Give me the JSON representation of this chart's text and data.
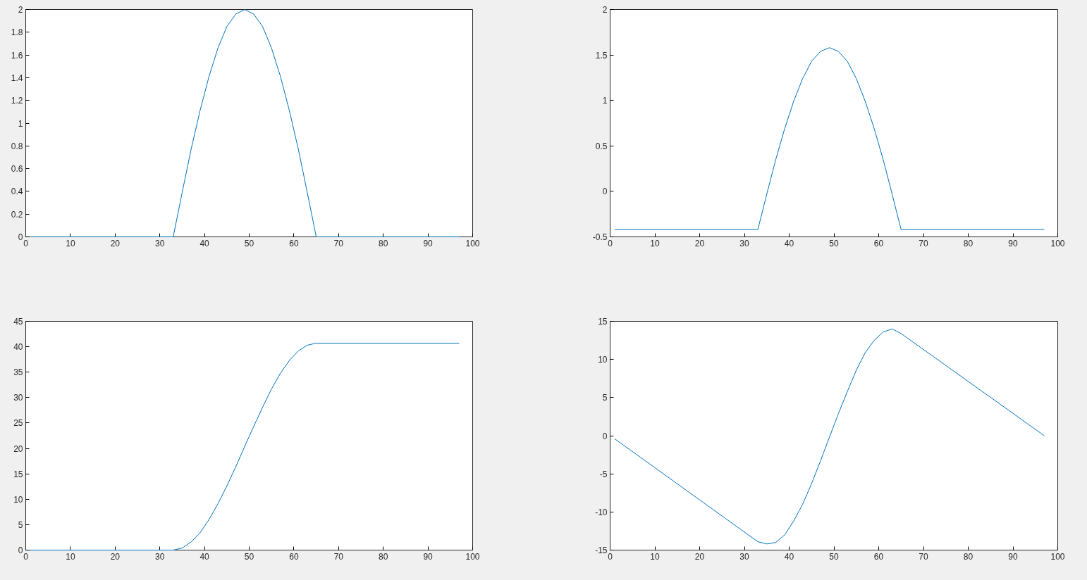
{
  "chart_data": [
    {
      "type": "line",
      "x": [
        1,
        33,
        35,
        37,
        39,
        41,
        43,
        45,
        47,
        49,
        51,
        53,
        55,
        57,
        59,
        61,
        63,
        65,
        97
      ],
      "series": [
        {
          "color": "#0072bd",
          "values": [
            0,
            0,
            0.39,
            0.77,
            1.11,
            1.41,
            1.66,
            1.85,
            1.96,
            2,
            1.96,
            1.85,
            1.66,
            1.41,
            1.11,
            0.77,
            0.39,
            0,
            0
          ]
        }
      ],
      "xlim": [
        0,
        100
      ],
      "ylim": [
        0,
        2
      ],
      "xticks": [
        0,
        10,
        20,
        30,
        40,
        50,
        60,
        70,
        80,
        90,
        100
      ],
      "yticks": [
        0,
        0.2,
        0.4,
        0.6,
        0.8,
        1,
        1.2,
        1.4,
        1.6,
        1.8,
        2
      ],
      "grid": false
    },
    {
      "type": "line",
      "x": [
        1,
        33,
        35,
        37,
        39,
        41,
        43,
        45,
        47,
        49,
        51,
        53,
        55,
        57,
        59,
        61,
        63,
        65,
        97
      ],
      "series": [
        {
          "color": "#0072bd",
          "values": [
            -0.42,
            -0.42,
            -0.03,
            0.35,
            0.69,
            0.99,
            1.24,
            1.43,
            1.54,
            1.58,
            1.54,
            1.43,
            1.24,
            0.99,
            0.69,
            0.35,
            -0.03,
            -0.42,
            -0.42
          ]
        }
      ],
      "xlim": [
        0,
        100
      ],
      "ylim": [
        -0.5,
        2
      ],
      "xticks": [
        0,
        10,
        20,
        30,
        40,
        50,
        60,
        70,
        80,
        90,
        100
      ],
      "yticks": [
        -0.5,
        0,
        0.5,
        1,
        1.5,
        2
      ],
      "grid": false
    },
    {
      "type": "line",
      "x": [
        1,
        33,
        35,
        37,
        39,
        41,
        43,
        45,
        47,
        49,
        51,
        53,
        55,
        57,
        59,
        61,
        63,
        65,
        97
      ],
      "series": [
        {
          "color": "#0072bd",
          "values": [
            0,
            0,
            0.4,
            1.6,
            3.4,
            6.0,
            9.1,
            12.6,
            16.4,
            20.4,
            24.3,
            28.1,
            31.7,
            34.8,
            37.3,
            39.2,
            40.3,
            40.7,
            40.7
          ]
        }
      ],
      "xlim": [
        0,
        100
      ],
      "ylim": [
        0,
        45
      ],
      "xticks": [
        0,
        10,
        20,
        30,
        40,
        50,
        60,
        70,
        80,
        90,
        100
      ],
      "yticks": [
        0,
        5,
        10,
        15,
        20,
        25,
        30,
        35,
        40,
        45
      ],
      "grid": false
    },
    {
      "type": "line",
      "x": [
        1,
        33,
        35,
        37,
        39,
        41,
        43,
        45,
        47,
        49,
        51,
        53,
        55,
        57,
        59,
        61,
        63,
        65,
        97
      ],
      "series": [
        {
          "color": "#0072bd",
          "values": [
            -0.4,
            -13.9,
            -14.2,
            -14.0,
            -13.0,
            -11.2,
            -9.0,
            -6.3,
            -3.3,
            -0.2,
            2.9,
            5.8,
            8.6,
            10.9,
            12.5,
            13.6,
            14.0,
            13.4,
            0
          ]
        }
      ],
      "xlim": [
        0,
        100
      ],
      "ylim": [
        -15,
        15
      ],
      "xticks": [
        0,
        10,
        20,
        30,
        40,
        50,
        60,
        70,
        80,
        90,
        100
      ],
      "yticks": [
        -15,
        -10,
        -5,
        0,
        5,
        10,
        15
      ],
      "grid": false
    }
  ]
}
